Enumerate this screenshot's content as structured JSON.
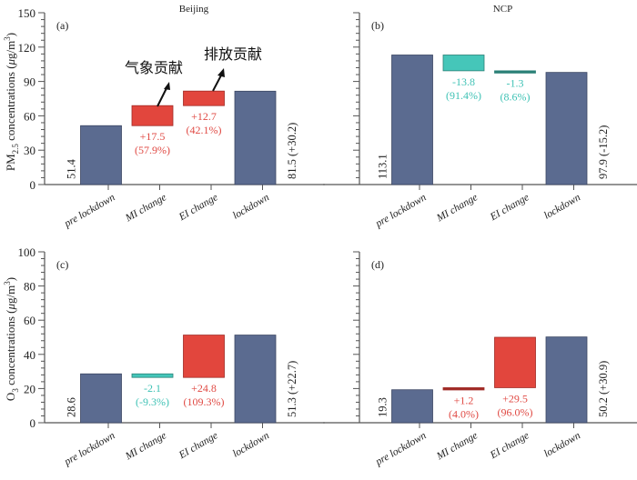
{
  "colors": {
    "base_bar": "#5b6b90",
    "base_stroke": "#3c4763",
    "increase": "#e2463d",
    "increase_stroke": "#a02a25",
    "decrease": "#45c6b9",
    "decrease_stroke": "#2b8077",
    "increase_text": "#e04a44",
    "decrease_text": "#3fc2b5",
    "axis_text": "#222222"
  },
  "annotations": {
    "meteorology": "气象贡献",
    "emission": "排放贡献"
  },
  "chart_data": [
    {
      "id": "a",
      "type": "bar",
      "subtype": "waterfall",
      "panel_label": "(a)",
      "title": "Beijing",
      "ylabel": "PM2.5 concentrations (μg/m3)",
      "ylim": [
        0,
        150
      ],
      "yticks": [
        0,
        30,
        60,
        90,
        120,
        150
      ],
      "show_ytick_labels": true,
      "categories": [
        "pre lockdown",
        "MI change",
        "EI change",
        "lockdown"
      ],
      "bars": [
        {
          "kind": "base",
          "start": 0,
          "end": 51.4,
          "label": "51.4"
        },
        {
          "kind": "increase",
          "start": 51.4,
          "end": 68.9,
          "label": "+17.5",
          "pct": "(57.9%)"
        },
        {
          "kind": "increase",
          "start": 68.9,
          "end": 81.6,
          "label": "+12.7",
          "pct": "(42.1%)"
        },
        {
          "kind": "base",
          "start": 0,
          "end": 81.5,
          "label": "81.5 (+30.2)"
        }
      ]
    },
    {
      "id": "b",
      "type": "bar",
      "subtype": "waterfall",
      "panel_label": "(b)",
      "title": "NCP",
      "ylabel": "",
      "ylim": [
        0,
        150
      ],
      "yticks": [
        0,
        30,
        60,
        90,
        120,
        150
      ],
      "show_ytick_labels": false,
      "categories": [
        "pre lockdown",
        "MI change",
        "EI change",
        "lockdown"
      ],
      "bars": [
        {
          "kind": "base",
          "start": 0,
          "end": 113.1,
          "label": "113.1"
        },
        {
          "kind": "decrease",
          "start": 113.1,
          "end": 99.3,
          "label": "-13.8",
          "pct": "(91.4%)"
        },
        {
          "kind": "decrease",
          "start": 99.3,
          "end": 98.0,
          "label": "-1.3",
          "pct": "(8.6%)"
        },
        {
          "kind": "base",
          "start": 0,
          "end": 97.9,
          "label": "97.9 (-15.2)"
        }
      ]
    },
    {
      "id": "c",
      "type": "bar",
      "subtype": "waterfall",
      "panel_label": "(c)",
      "title": "",
      "ylabel": "O3 concentrations (μg/m3)",
      "ylim": [
        0,
        100
      ],
      "yticks": [
        0,
        20,
        40,
        60,
        80,
        100
      ],
      "show_ytick_labels": true,
      "categories": [
        "pre lockdown",
        "MI change",
        "EI change",
        "lockdown"
      ],
      "bars": [
        {
          "kind": "base",
          "start": 0,
          "end": 28.6,
          "label": "28.6"
        },
        {
          "kind": "decrease",
          "start": 28.6,
          "end": 26.5,
          "label": "-2.1",
          "pct": "(-9.3%)"
        },
        {
          "kind": "increase",
          "start": 26.5,
          "end": 51.3,
          "label": "+24.8",
          "pct": "(109.3%)"
        },
        {
          "kind": "base",
          "start": 0,
          "end": 51.3,
          "label": "51.3 (+22.7)"
        }
      ]
    },
    {
      "id": "d",
      "type": "bar",
      "subtype": "waterfall",
      "panel_label": "(d)",
      "title": "",
      "ylabel": "",
      "ylim": [
        0,
        100
      ],
      "yticks": [
        0,
        20,
        40,
        60,
        80,
        100
      ],
      "show_ytick_labels": false,
      "categories": [
        "pre lockdown",
        "MI change",
        "EI change",
        "lockdown"
      ],
      "bars": [
        {
          "kind": "base",
          "start": 0,
          "end": 19.3,
          "label": "19.3"
        },
        {
          "kind": "increase",
          "start": 19.3,
          "end": 20.5,
          "label": "+1.2",
          "pct": "(4.0%)"
        },
        {
          "kind": "increase",
          "start": 20.5,
          "end": 50.0,
          "label": "+29.5",
          "pct": "(96.0%)"
        },
        {
          "kind": "base",
          "start": 0,
          "end": 50.2,
          "label": "50.2 (+30.9)"
        }
      ]
    }
  ]
}
